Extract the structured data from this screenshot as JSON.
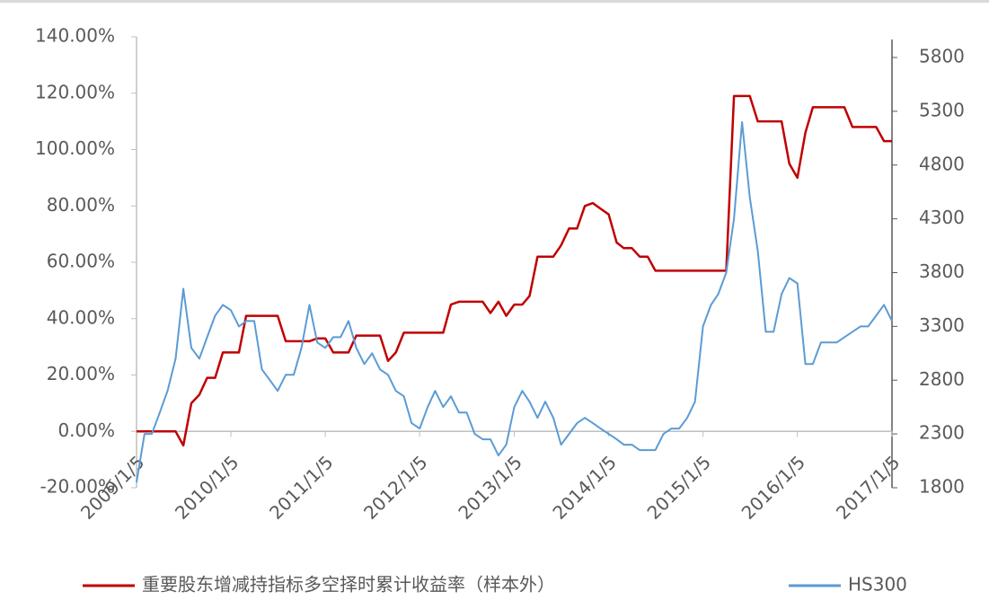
{
  "chart_data": {
    "type": "line",
    "x": [
      "2009/1/5",
      "2009/2/5",
      "2009/3/5",
      "2009/4/5",
      "2009/5/5",
      "2009/6/5",
      "2009/7/5",
      "2009/8/5",
      "2009/9/5",
      "2009/10/5",
      "2009/11/5",
      "2009/12/5",
      "2010/1/5",
      "2010/2/5",
      "2010/3/5",
      "2010/4/5",
      "2010/5/5",
      "2010/6/5",
      "2010/7/5",
      "2010/8/5",
      "2010/9/5",
      "2010/10/5",
      "2010/11/5",
      "2010/12/5",
      "2011/1/5",
      "2011/2/5",
      "2011/3/5",
      "2011/4/5",
      "2011/5/5",
      "2011/6/5",
      "2011/7/5",
      "2011/8/5",
      "2011/9/5",
      "2011/10/5",
      "2011/11/5",
      "2011/12/5",
      "2012/1/5",
      "2012/2/5",
      "2012/3/5",
      "2012/4/5",
      "2012/5/5",
      "2012/6/5",
      "2012/7/5",
      "2012/8/5",
      "2012/9/5",
      "2012/10/5",
      "2012/11/5",
      "2012/12/5",
      "2013/1/5",
      "2013/2/5",
      "2013/3/5",
      "2013/4/5",
      "2013/5/5",
      "2013/6/5",
      "2013/7/5",
      "2013/8/5",
      "2013/9/5",
      "2013/10/5",
      "2013/11/5",
      "2013/12/5",
      "2014/1/5",
      "2014/2/5",
      "2014/3/5",
      "2014/4/5",
      "2014/5/5",
      "2014/6/5",
      "2014/7/5",
      "2014/8/5",
      "2014/9/5",
      "2014/10/5",
      "2014/11/5",
      "2014/12/5",
      "2015/1/5",
      "2015/2/5",
      "2015/3/5",
      "2015/4/5",
      "2015/5/5",
      "2015/6/5",
      "2015/7/5",
      "2015/8/5",
      "2015/9/5",
      "2015/10/5",
      "2015/11/5",
      "2015/12/5",
      "2016/1/5",
      "2016/2/5",
      "2016/3/5",
      "2016/4/5",
      "2016/5/5",
      "2016/6/5",
      "2016/7/5",
      "2016/8/5",
      "2016/9/5",
      "2016/10/5",
      "2016/11/5",
      "2016/12/5",
      "2017/1/5"
    ],
    "series": [
      {
        "name": "重要股东增减持指标多空择时累计收益率（样本外）",
        "color": "#c00000",
        "values": [
          0,
          0,
          0,
          0,
          0,
          0,
          -5,
          10,
          13,
          19,
          19,
          28,
          28,
          28,
          41,
          41,
          41,
          41,
          41,
          32,
          32,
          32,
          32,
          33,
          33,
          28,
          28,
          28,
          34,
          34,
          34,
          34,
          25,
          28,
          35,
          35,
          35,
          35,
          35,
          35,
          45,
          46,
          46,
          46,
          46,
          42,
          46,
          41,
          45,
          45,
          48,
          62,
          62,
          62,
          66,
          72,
          72,
          80,
          81,
          79,
          77,
          67,
          65,
          65,
          62,
          62,
          57,
          57,
          57,
          57,
          57,
          57,
          57,
          57,
          57,
          57,
          119,
          119,
          119,
          110,
          110,
          110,
          110,
          95,
          90,
          106,
          115,
          115,
          115,
          115,
          115,
          108,
          108,
          108,
          108,
          103,
          103
        ]
      },
      {
        "name": "HS300",
        "color": "#5b9bd5",
        "axis": "y2",
        "values": [
          1850,
          2300,
          2300,
          2500,
          2700,
          3000,
          3650,
          3100,
          3000,
          3200,
          3400,
          3500,
          3450,
          3300,
          3350,
          3350,
          2900,
          2800,
          2700,
          2850,
          2850,
          3100,
          3500,
          3150,
          3100,
          3200,
          3200,
          3350,
          3100,
          2950,
          3050,
          2900,
          2850,
          2700,
          2650,
          2400,
          2350,
          2550,
          2700,
          2550,
          2650,
          2500,
          2500,
          2300,
          2250,
          2250,
          2100,
          2200,
          2550,
          2700,
          2600,
          2450,
          2600,
          2450,
          2200,
          2300,
          2400,
          2450,
          2400,
          2350,
          2300,
          2250,
          2200,
          2200,
          2150,
          2150,
          2150,
          2300,
          2350,
          2350,
          2450,
          2600,
          3300,
          3500,
          3600,
          3800,
          4300,
          5200,
          4500,
          4000,
          3250,
          3250,
          3600,
          3750,
          3700,
          2950,
          2950,
          3150,
          3150,
          3150,
          3200,
          3250,
          3300,
          3300,
          3400,
          3500,
          3350
        ]
      }
    ],
    "xlim": [
      "2009/1/5",
      "2017/1/5"
    ],
    "xticks": [
      "2009/1/5",
      "2010/1/5",
      "2011/1/5",
      "2012/1/5",
      "2013/1/5",
      "2014/1/5",
      "2015/1/5",
      "2016/1/5",
      "2017/1/5"
    ],
    "ylim": [
      -20,
      140
    ],
    "yticks": [
      {
        "value": -20,
        "label": "-20.00%"
      },
      {
        "value": 0,
        "label": "0.00%"
      },
      {
        "value": 20,
        "label": "20.00%"
      },
      {
        "value": 40,
        "label": "40.00%"
      },
      {
        "value": 60,
        "label": "60.00%"
      },
      {
        "value": 80,
        "label": "80.00%"
      },
      {
        "value": 100,
        "label": "100.00%"
      },
      {
        "value": 120,
        "label": "120.00%"
      },
      {
        "value": 140,
        "label": "140.00%"
      }
    ],
    "y2lim": [
      1800,
      5800
    ],
    "y2ticks": [
      1800,
      2300,
      2800,
      3300,
      3800,
      4300,
      4800,
      5300,
      5800
    ],
    "legend": "bottom"
  }
}
